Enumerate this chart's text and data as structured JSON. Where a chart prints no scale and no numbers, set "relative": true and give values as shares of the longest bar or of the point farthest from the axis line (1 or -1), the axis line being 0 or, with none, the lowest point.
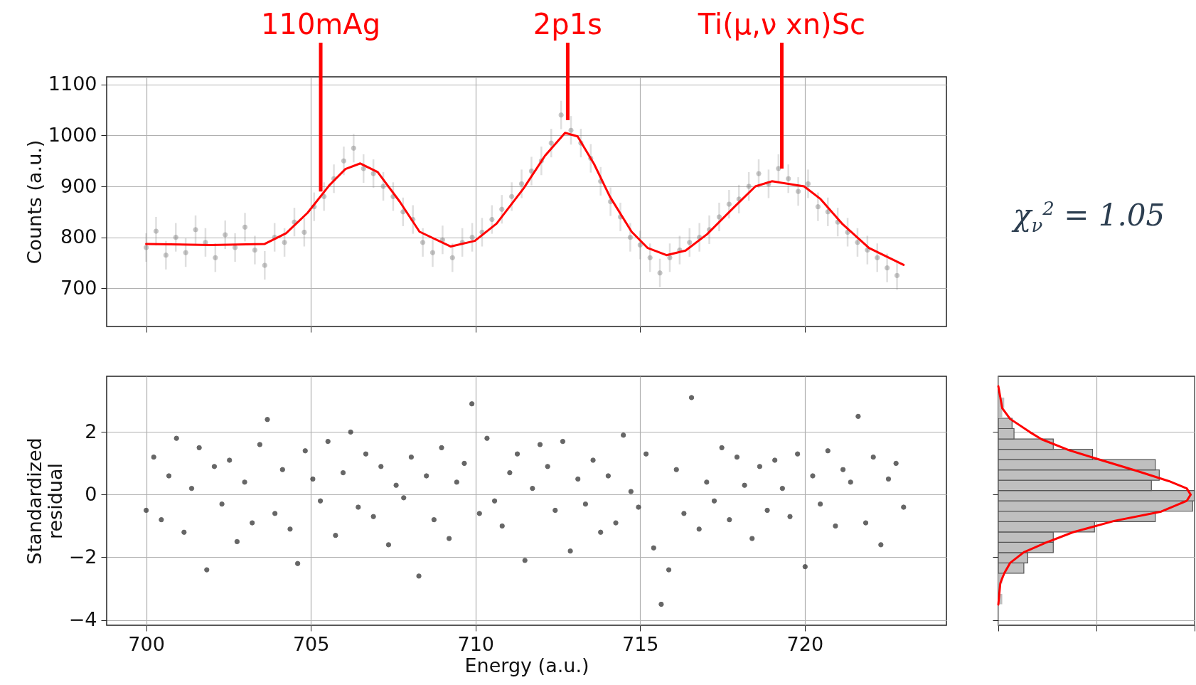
{
  "chart_data": [
    {
      "type": "scatter",
      "ylabel": "Counts (a.u.)",
      "annotations": [
        {
          "text": "110mAg",
          "x": 705.3,
          "y": 890
        },
        {
          "text": "2p1s",
          "x": 712.8,
          "y": 1030
        },
        {
          "text": "Ti(μ,ν xn)Sc",
          "x": 719.3,
          "y": 935
        },
        "χ$_{ν}$$^{2}$ = 1.05"
      ],
      "xlim": [
        698.8,
        724.3
      ],
      "xticks": [
        700,
        705,
        710,
        715,
        720
      ],
      "ylim": [
        625,
        1115
      ],
      "yticks": [
        700,
        800,
        900,
        1000,
        1100
      ],
      "grid": true,
      "tick_labels": "y",
      "series": [
        {
          "color": "#808080",
          "marker": "circle",
          "x": [
            700,
            700.3,
            700.6,
            700.9,
            701.2,
            701.5,
            701.8,
            702.1,
            702.4,
            702.7,
            703,
            703.3,
            703.6,
            703.9,
            704.2,
            704.5,
            704.8,
            705.1,
            705.4,
            705.7,
            706,
            706.3,
            706.6,
            706.9,
            707.2,
            707.5,
            707.8,
            708.1,
            708.4,
            708.7,
            709,
            709.3,
            709.6,
            709.9,
            710.2,
            710.5,
            710.8,
            711.1,
            711.4,
            711.7,
            712,
            712.3,
            712.6,
            712.9,
            713.2,
            713.5,
            713.8,
            714.1,
            714.4,
            714.7,
            715,
            715.3,
            715.6,
            715.9,
            716.2,
            716.5,
            716.8,
            717.1,
            717.4,
            717.7,
            718,
            718.3,
            718.6,
            718.9,
            719.2,
            719.5,
            719.8,
            720.1,
            720.4,
            720.7,
            721,
            721.3,
            721.6,
            721.9,
            722.2,
            722.5,
            722.8
          ],
          "values": [
            780,
            812,
            765,
            800,
            770,
            815,
            790,
            760,
            805,
            780,
            820,
            775,
            745,
            800,
            790,
            830,
            810,
            860,
            880,
            915,
            950,
            975,
            935,
            925,
            900,
            880,
            850,
            835,
            790,
            770,
            795,
            760,
            790,
            800,
            810,
            835,
            855,
            880,
            905,
            930,
            950,
            985,
            1040,
            1010,
            985,
            955,
            910,
            870,
            840,
            800,
            785,
            760,
            730,
            760,
            775,
            790,
            800,
            815,
            840,
            865,
            875,
            900,
            925,
            905,
            935,
            915,
            890,
            905,
            860,
            850,
            830,
            810,
            790,
            775,
            760,
            740,
            725
          ],
          "errors": [
            28,
            28,
            28,
            28,
            28,
            28,
            28,
            28,
            28,
            28,
            28,
            28,
            28,
            28,
            28,
            28,
            28,
            28,
            28,
            28,
            28,
            28,
            28,
            28,
            28,
            28,
            28,
            28,
            28,
            28,
            28,
            28,
            28,
            28,
            28,
            28,
            28,
            28,
            28,
            28,
            28,
            28,
            28,
            28,
            28,
            28,
            28,
            28,
            28,
            28,
            28,
            28,
            28,
            28,
            28,
            28,
            28,
            28,
            28,
            28,
            28,
            28,
            28,
            28,
            28,
            28,
            28,
            28,
            28,
            28,
            28,
            28,
            28,
            28,
            28,
            28,
            28
          ]
        },
        {
          "type": "line",
          "color": "#ff0000",
          "x": [
            700,
            701.95,
            703.6,
            704.25,
            704.9,
            705.56,
            706.05,
            706.5,
            707.03,
            707.7,
            708.3,
            709.25,
            709.98,
            710.64,
            711.46,
            712.11,
            712.72,
            713.1,
            713.6,
            714.08,
            714.74,
            715.23,
            715.8,
            716.38,
            717.03,
            717.85,
            718.5,
            719,
            719.98,
            720.48,
            721.13,
            721.95,
            723
          ],
          "values": [
            787,
            785,
            787,
            808,
            848,
            902,
            934,
            945,
            928,
            870,
            811,
            782,
            793,
            827,
            896,
            960,
            1005,
            998,
            944,
            880,
            811,
            779,
            765,
            774,
            806,
            859,
            900,
            910,
            900,
            875,
            827,
            779,
            746
          ]
        }
      ]
    },
    {
      "type": "scatter",
      "xlabel": "Energy (a.u.)",
      "ylabel": "Standardized\nresidual",
      "xlim": [
        698.8,
        724.3
      ],
      "xticks": [
        700,
        705,
        710,
        715,
        720
      ],
      "ylim": [
        -4.17,
        3.78
      ],
      "yticks": [
        {
          "value": -4,
          "label": "−4"
        },
        {
          "value": -2,
          "label": "−2"
        },
        0,
        2
      ],
      "grid": true,
      "marker": "circle",
      "series": [
        {
          "color": "#333333",
          "x": [
            700,
            700.23,
            700.46,
            700.69,
            700.92,
            701.15,
            701.38,
            701.61,
            701.84,
            702.07,
            702.3,
            702.53,
            702.76,
            702.99,
            703.22,
            703.45,
            703.68,
            703.91,
            704.14,
            704.37,
            704.6,
            704.83,
            705.06,
            705.29,
            705.52,
            705.75,
            705.98,
            706.21,
            706.44,
            706.67,
            706.9,
            707.13,
            707.36,
            707.59,
            707.82,
            708.05,
            708.28,
            708.51,
            708.74,
            708.97,
            709.2,
            709.43,
            709.66,
            709.89,
            710.12,
            710.35,
            710.58,
            710.81,
            711.04,
            711.27,
            711.5,
            711.73,
            711.96,
            712.19,
            712.42,
            712.65,
            712.88,
            713.11,
            713.34,
            713.57,
            713.8,
            714.03,
            714.26,
            714.49,
            714.72,
            714.95,
            715.18,
            715.41,
            715.64,
            715.87,
            716.1,
            716.33,
            716.56,
            716.79,
            717.02,
            717.25,
            717.48,
            717.71,
            717.94,
            718.17,
            718.4,
            718.63,
            718.86,
            719.09,
            719.32,
            719.55,
            719.78,
            720.01,
            720.24,
            720.47,
            720.7,
            720.93,
            721.16,
            721.39,
            721.62,
            721.85,
            722.08,
            722.31,
            722.54,
            722.77,
            723
          ],
          "values": [
            -0.5,
            1.2,
            -0.8,
            0.6,
            1.8,
            -1.2,
            0.2,
            1.5,
            -2.4,
            0.9,
            -0.3,
            1.1,
            -1.5,
            0.4,
            -0.9,
            1.6,
            2.4,
            -0.6,
            0.8,
            -1.1,
            -2.2,
            1.4,
            0.5,
            -0.2,
            1.7,
            -1.3,
            0.7,
            2.0,
            -0.4,
            1.3,
            -0.7,
            0.9,
            -1.6,
            0.3,
            -0.1,
            1.2,
            -2.6,
            0.6,
            -0.8,
            1.5,
            -1.4,
            0.4,
            1.0,
            2.9,
            -0.6,
            1.8,
            -0.2,
            -1.0,
            0.7,
            1.3,
            -2.1,
            0.2,
            1.6,
            0.9,
            -0.5,
            1.7,
            -1.8,
            0.5,
            -0.3,
            1.1,
            -1.2,
            0.6,
            -0.9,
            1.9,
            0.1,
            -0.4,
            1.3,
            -1.7,
            -3.5,
            -2.4,
            0.8,
            -0.6,
            3.1,
            -1.1,
            0.4,
            -0.2,
            1.5,
            -0.8,
            1.2,
            0.3,
            -1.4,
            0.9,
            -0.5,
            1.1,
            0.2,
            -0.7,
            1.3,
            -2.3,
            0.6,
            -0.3,
            1.4,
            -1.0,
            0.8,
            0.4,
            2.5,
            -0.9,
            1.2,
            -1.6,
            0.5,
            1.0,
            -0.4
          ]
        }
      ]
    },
    {
      "type": "histogram",
      "orientation": "horizontal",
      "relative": true,
      "ylim": [
        -4.17,
        3.78
      ],
      "yticks": [
        -4,
        -2,
        0,
        2
      ],
      "grid": true,
      "tick_labels": false,
      "bins": [
        -3.5,
        -3.17,
        -2.84,
        -2.51,
        -2.18,
        -1.85,
        -1.52,
        -1.19,
        -0.86,
        -0.53,
        -0.2,
        0.13,
        0.46,
        0.79,
        1.12,
        1.45,
        1.78,
        2.11,
        2.44,
        2.77,
        3.1
      ],
      "series": [
        {
          "type": "histogram",
          "color": "#bfbfbf",
          "values": [
            0.02,
            0,
            0.02,
            0.13,
            0.15,
            0.28,
            0.28,
            0.49,
            0.8,
            0.99,
            1,
            0.78,
            0.82,
            0.8,
            0.48,
            0.28,
            0.08,
            0.07,
            0.02,
            0.03
          ]
        },
        {
          "type": "line",
          "color": "#ff0000",
          "x": [
            3.46,
            2.76,
            2.42,
            2.0,
            1.77,
            1.42,
            1.11,
            0.77,
            0.43,
            0.2,
            0,
            -0.2,
            -0.54,
            -0.84,
            -1.2,
            -1.54,
            -1.84,
            -2.18,
            -2.51,
            -2.83,
            -3.51
          ],
          "values": [
            0,
            0.02,
            0.06,
            0.16,
            0.22,
            0.36,
            0.52,
            0.7,
            0.87,
            0.96,
            0.98,
            0.96,
            0.83,
            0.59,
            0.38,
            0.24,
            0.13,
            0.06,
            0.03,
            0.01,
            0
          ]
        }
      ]
    }
  ]
}
